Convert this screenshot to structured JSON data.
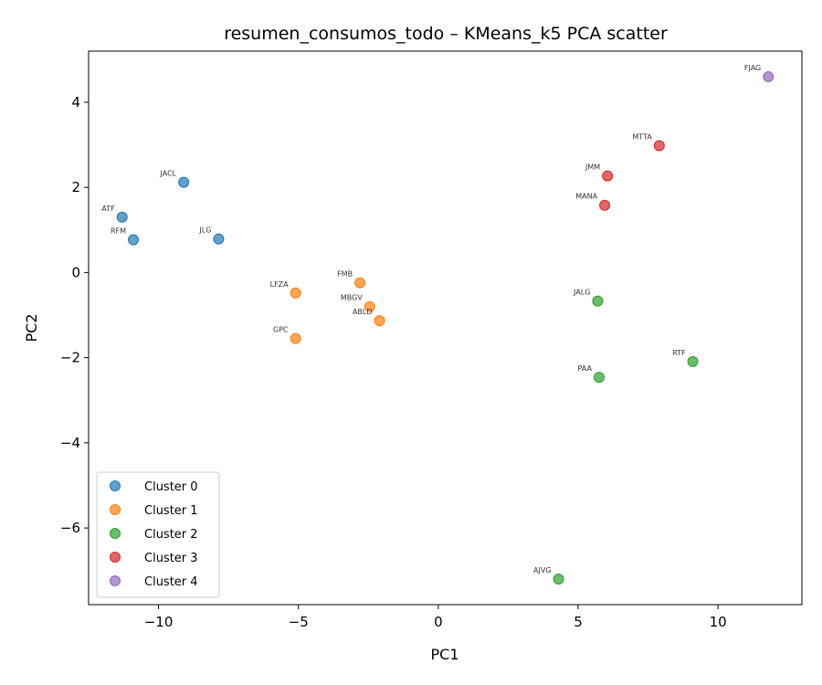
{
  "chart_data": {
    "type": "scatter",
    "title": "resumen_consumos_todo – KMeans_k5 PCA scatter",
    "xlabel": "PC1",
    "ylabel": "PC2",
    "xlim": [
      -12.5,
      13.0
    ],
    "ylim": [
      -7.8,
      5.2
    ],
    "xticks": [
      -10,
      -5,
      0,
      5,
      10
    ],
    "yticks": [
      -6,
      -4,
      -2,
      0,
      2,
      4
    ],
    "xtick_labels": [
      "−10",
      "−5",
      "0",
      "5",
      "10"
    ],
    "ytick_labels": [
      "−6",
      "−4",
      "−2",
      "0",
      "2",
      "4"
    ],
    "grid": false,
    "legend_position": "lower-left",
    "series": [
      {
        "name": "Cluster 0",
        "color": "#1f77b4",
        "points": [
          {
            "label": "JACL",
            "x": -9.1,
            "y": 2.12
          },
          {
            "label": "ATF",
            "x": -11.3,
            "y": 1.3
          },
          {
            "label": "RFM",
            "x": -10.9,
            "y": 0.77
          },
          {
            "label": "JLG",
            "x": -7.85,
            "y": 0.79
          }
        ]
      },
      {
        "name": "Cluster 1",
        "color": "#ff7f0e",
        "points": [
          {
            "label": "FMB",
            "x": -2.8,
            "y": -0.24
          },
          {
            "label": "LFZA",
            "x": -5.1,
            "y": -0.48
          },
          {
            "label": "MBGV",
            "x": -2.45,
            "y": -0.8
          },
          {
            "label": "ABLD",
            "x": -2.1,
            "y": -1.13
          },
          {
            "label": "GPC",
            "x": -5.1,
            "y": -1.55
          }
        ]
      },
      {
        "name": "Cluster 2",
        "color": "#2ca02c",
        "points": [
          {
            "label": "JALG",
            "x": 5.7,
            "y": -0.67
          },
          {
            "label": "RTF",
            "x": 9.1,
            "y": -2.09
          },
          {
            "label": "PAA",
            "x": 5.75,
            "y": -2.46
          },
          {
            "label": "AJVG",
            "x": 4.3,
            "y": -7.2
          }
        ]
      },
      {
        "name": "Cluster 3",
        "color": "#d62728",
        "points": [
          {
            "label": "MTTA",
            "x": 7.9,
            "y": 2.98
          },
          {
            "label": "JMM",
            "x": 6.05,
            "y": 2.27
          },
          {
            "label": "MANA",
            "x": 5.95,
            "y": 1.58
          }
        ]
      },
      {
        "name": "Cluster 4",
        "color": "#9467bd",
        "points": [
          {
            "label": "FJAG",
            "x": 11.8,
            "y": 4.6
          }
        ]
      }
    ]
  }
}
